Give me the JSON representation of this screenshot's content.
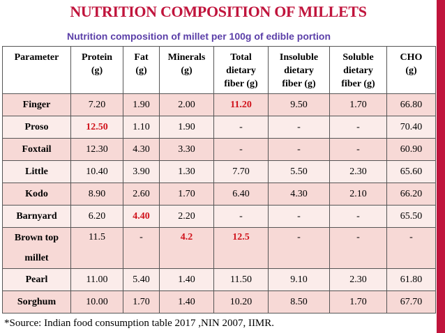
{
  "title": "NUTRITION COMPOSITION OF MILLETS",
  "subtitle": "Nutrition composition of millet per 100g of edible portion",
  "colors": {
    "title": "#c0143c",
    "subtitle": "#5b3fa8",
    "highlight": "#d0121b",
    "row_odd": "#f7d9d6",
    "row_even": "#fbecea"
  },
  "table": {
    "headers": [
      [
        "Parameter"
      ],
      [
        "Protein",
        "(g)"
      ],
      [
        "Fat",
        "(g)"
      ],
      [
        "Minerals",
        "(g)"
      ],
      [
        "Total",
        "dietary",
        "fiber (g)"
      ],
      [
        "Insoluble",
        "dietary",
        "fiber (g)"
      ],
      [
        "Soluble",
        "dietary",
        "fiber  (g)"
      ],
      [
        "CHO",
        "(g)"
      ]
    ],
    "rows": [
      {
        "name": "Finger",
        "cells": [
          "7.20",
          "1.90",
          "2.00",
          "11.20",
          "9.50",
          "1.70",
          "66.80"
        ],
        "highlight": [
          3
        ]
      },
      {
        "name": "Proso",
        "cells": [
          "12.50",
          "1.10",
          "1.90",
          "-",
          "-",
          "-",
          "70.40"
        ],
        "highlight": [
          0
        ]
      },
      {
        "name": "Foxtail",
        "cells": [
          "12.30",
          "4.30",
          "3.30",
          "-",
          "-",
          "-",
          "60.90"
        ],
        "highlight": []
      },
      {
        "name": "Little",
        "cells": [
          "10.40",
          "3.90",
          "1.30",
          "7.70",
          "5.50",
          "2.30",
          "65.60"
        ],
        "highlight": []
      },
      {
        "name": "Kodo",
        "cells": [
          "8.90",
          "2.60",
          "1.70",
          "6.40",
          "4.30",
          "2.10",
          "66.20"
        ],
        "highlight": []
      },
      {
        "name": "Barnyard",
        "cells": [
          "6.20",
          "4.40",
          "2.20",
          "-",
          "-",
          "-",
          "65.50"
        ],
        "highlight": [
          1
        ]
      },
      {
        "name_lines": [
          "Brown top",
          "millet"
        ],
        "cells": [
          "11.5",
          "-",
          "4.2",
          "12.5",
          "-",
          "-",
          "-"
        ],
        "highlight": [
          2,
          3
        ],
        "tall": true
      },
      {
        "name": "Pearl",
        "cells": [
          "11.00",
          "5.40",
          "1.40",
          "11.50",
          "9.10",
          "2.30",
          "61.80"
        ],
        "highlight": []
      },
      {
        "name": "Sorghum",
        "cells": [
          "10.00",
          "1.70",
          "1.40",
          "10.20",
          "8.50",
          "1.70",
          "67.70"
        ],
        "highlight": []
      }
    ]
  },
  "source": "*Source: Indian food consumption table 2017 ,NIN 2007, IIMR."
}
